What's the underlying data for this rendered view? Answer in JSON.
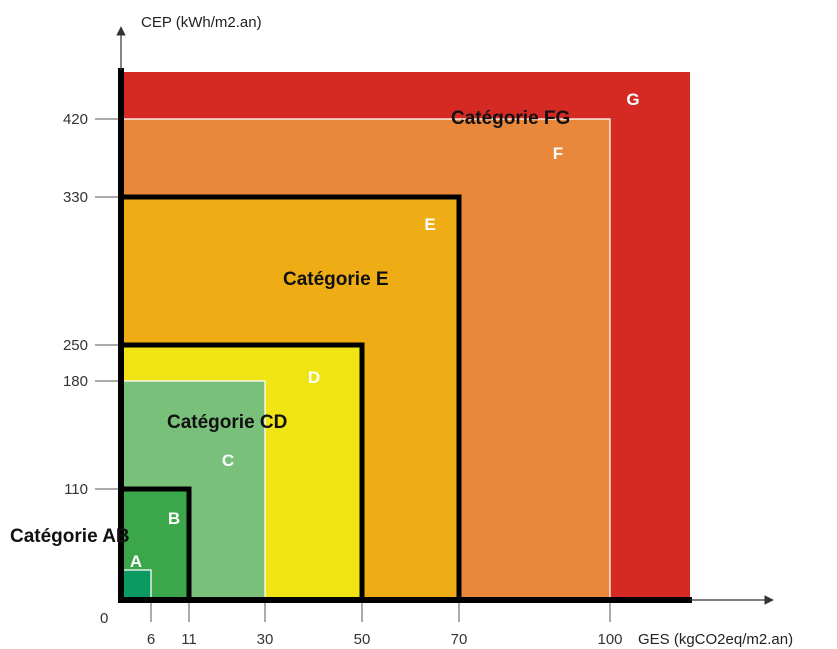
{
  "chart_data": {
    "type": "heatmap",
    "x_axis": {
      "label": "GES (kgCO2eq/m2.an)",
      "ticks": [
        6,
        11,
        30,
        50,
        70,
        100
      ],
      "tick_labels": [
        "6",
        "11",
        "30",
        "50",
        "70",
        "100"
      ],
      "max": 120
    },
    "y_axis": {
      "label": "CEP (kWh/m2.an)",
      "ticks": [
        110,
        180,
        250,
        330,
        420
      ],
      "tick_labels": [
        "110",
        "180",
        "250",
        "330",
        "420"
      ],
      "max": 450
    },
    "origin_label": "0",
    "classes": [
      {
        "letter": "G",
        "ges_max": 120,
        "cep_max": 450,
        "color": "#d42a23"
      },
      {
        "letter": "F",
        "ges_max": 100,
        "cep_max": 420,
        "color": "#e9873a"
      },
      {
        "letter": "E",
        "ges_max": 70,
        "cep_max": 330,
        "color": "#eead14"
      },
      {
        "letter": "D",
        "ges_max": 50,
        "cep_max": 250,
        "color": "#f1e414"
      },
      {
        "letter": "C",
        "ges_max": 30,
        "cep_max": 180,
        "color": "#79c07a"
      },
      {
        "letter": "B",
        "ges_max": 11,
        "cep_max": 110,
        "color": "#3ca64a"
      },
      {
        "letter": "A",
        "ges_max": 6,
        "cep_max": 50,
        "color": "#0c9a63"
      }
    ],
    "categories": [
      {
        "name": "Catégorie AB",
        "ges_max": 11,
        "cep_max": 110
      },
      {
        "name": "Catégorie CD",
        "ges_max": 50,
        "cep_max": 250
      },
      {
        "name": "Catégorie E",
        "ges_max": 70,
        "cep_max": 330
      },
      {
        "name": "Catégorie FG",
        "ges_max": 120,
        "cep_max": 450
      }
    ]
  }
}
